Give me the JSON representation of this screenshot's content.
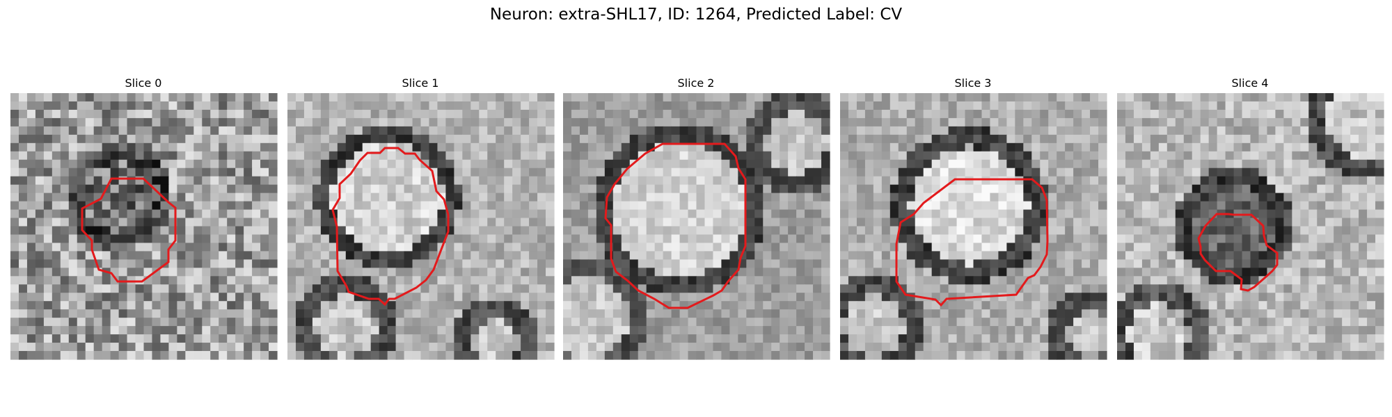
{
  "figure": {
    "title": "Neuron: extra-SHL17, ID: 1264, Predicted Label: CV",
    "contour_color": "#e31a1c",
    "image_colormap": "grayscale",
    "panels": [
      {
        "title": "Slice 0"
      },
      {
        "title": "Slice 1"
      },
      {
        "title": "Slice 2"
      },
      {
        "title": "Slice 3"
      },
      {
        "title": "Slice 4"
      }
    ]
  }
}
